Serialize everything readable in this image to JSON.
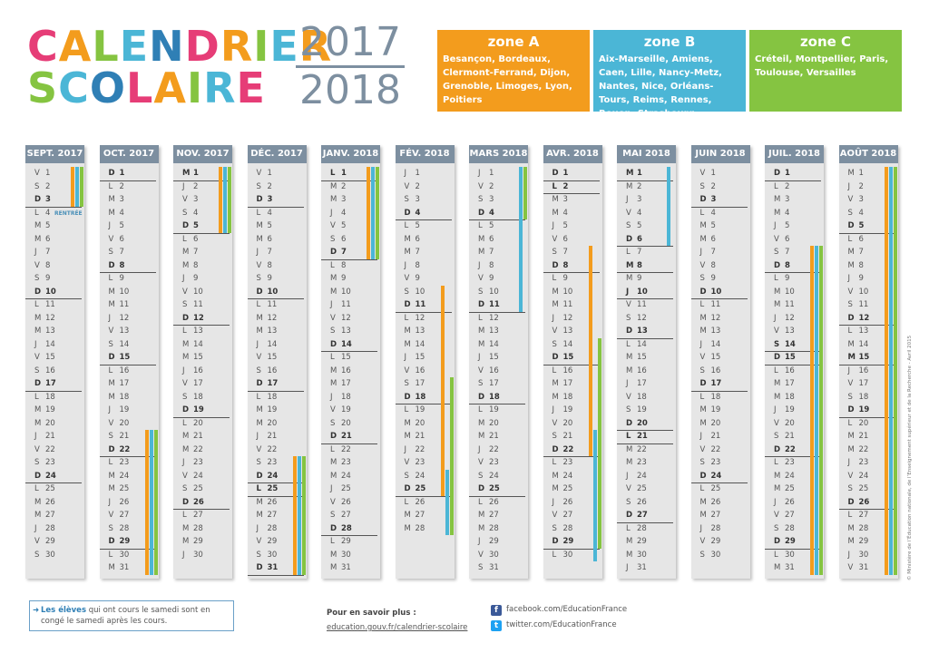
{
  "title": {
    "line1": [
      {
        "t": "C",
        "c": "#e63d77"
      },
      {
        "t": "A",
        "c": "#f39c1d"
      },
      {
        "t": "L",
        "c": "#85c441"
      },
      {
        "t": "E",
        "c": "#4bb6d6"
      },
      {
        "t": "N",
        "c": "#2f7fb5"
      },
      {
        "t": "D",
        "c": "#e63d77"
      },
      {
        "t": "R",
        "c": "#f39c1d"
      },
      {
        "t": "I",
        "c": "#85c441"
      },
      {
        "t": "E",
        "c": "#4bb6d6"
      },
      {
        "t": "R",
        "c": "#f39c1d"
      }
    ],
    "line2": [
      {
        "t": "S",
        "c": "#85c441"
      },
      {
        "t": "C",
        "c": "#4bb6d6"
      },
      {
        "t": "O",
        "c": "#2f7fb5"
      },
      {
        "t": "L",
        "c": "#e63d77"
      },
      {
        "t": "A",
        "c": "#f39c1d"
      },
      {
        "t": "I",
        "c": "#85c441"
      },
      {
        "t": "R",
        "c": "#4bb6d6"
      },
      {
        "t": "E",
        "c": "#e63d77"
      }
    ],
    "year1": "2017",
    "year2": "2018"
  },
  "zones": [
    {
      "name": "zone A",
      "cities": "Besançon, Bordeaux, Clermont-Ferrand, Dijon, Grenoble, Limoges, Lyon, Poitiers"
    },
    {
      "name": "zone B",
      "cities": "Aix-Marseille, Amiens, Caen, Lille, Nancy-Metz, Nantes, Nice, Orléans-Tours, Reims, Rennes, Rouen, Strasbourg"
    },
    {
      "name": "zone C",
      "cities": "Créteil, Montpellier, Paris, Toulouse, Versailles"
    }
  ],
  "rentree_label": "RENTRÉE",
  "months": [
    {
      "label": "SEPT. 2017",
      "days": 30,
      "first": 5,
      "bold": []
    },
    {
      "label": "OCT. 2017",
      "days": 31,
      "first": 0,
      "bold": []
    },
    {
      "label": "NOV. 2017",
      "days": 30,
      "first": 3,
      "bold": [
        1
      ]
    },
    {
      "label": "DÉC. 2017",
      "days": 31,
      "first": 5,
      "bold": [
        25
      ]
    },
    {
      "label": "JANV. 2018",
      "days": 31,
      "first": 1,
      "bold": [
        1
      ]
    },
    {
      "label": "FÉV. 2018",
      "days": 28,
      "first": 4,
      "bold": []
    },
    {
      "label": "MARS 2018",
      "days": 31,
      "first": 4,
      "bold": []
    },
    {
      "label": "AVR. 2018",
      "days": 30,
      "first": 0,
      "bold": [
        1,
        2
      ]
    },
    {
      "label": "MAI 2018",
      "days": 31,
      "first": 2,
      "bold": [
        1,
        8,
        10,
        21
      ]
    },
    {
      "label": "JUIN 2018",
      "days": 30,
      "first": 5,
      "bold": []
    },
    {
      "label": "JUIL. 2018",
      "days": 31,
      "first": 0,
      "bold": [
        14
      ]
    },
    {
      "label": "AOÛT 2018",
      "days": 31,
      "first": 3,
      "bold": [
        15
      ]
    }
  ],
  "weekday_letters": [
    "D",
    "L",
    "M",
    "M",
    "J",
    "V",
    "S"
  ],
  "holidays": [
    {
      "zone": "A",
      "m": 0,
      "s": 1,
      "e": 3
    },
    {
      "zone": "B",
      "m": 0,
      "s": 1,
      "e": 3
    },
    {
      "zone": "C",
      "m": 0,
      "s": 1,
      "e": 3
    },
    {
      "zone": "A",
      "m": 1,
      "s": 21,
      "e": 31
    },
    {
      "zone": "B",
      "m": 1,
      "s": 21,
      "e": 31
    },
    {
      "zone": "C",
      "m": 1,
      "s": 21,
      "e": 31
    },
    {
      "zone": "A",
      "m": 2,
      "s": 1,
      "e": 5
    },
    {
      "zone": "B",
      "m": 2,
      "s": 1,
      "e": 5
    },
    {
      "zone": "C",
      "m": 2,
      "s": 1,
      "e": 5
    },
    {
      "zone": "A",
      "m": 3,
      "s": 23,
      "e": 31
    },
    {
      "zone": "B",
      "m": 3,
      "s": 23,
      "e": 31
    },
    {
      "zone": "C",
      "m": 3,
      "s": 23,
      "e": 31
    },
    {
      "zone": "A",
      "m": 4,
      "s": 1,
      "e": 7
    },
    {
      "zone": "B",
      "m": 4,
      "s": 1,
      "e": 7
    },
    {
      "zone": "C",
      "m": 4,
      "s": 1,
      "e": 7
    },
    {
      "zone": "A",
      "m": 5,
      "s": 10,
      "e": 25
    },
    {
      "zone": "B",
      "m": 5,
      "s": 24,
      "e": 28
    },
    {
      "zone": "B",
      "m": 6,
      "s": 1,
      "e": 11
    },
    {
      "zone": "C",
      "m": 5,
      "s": 17,
      "e": 28
    },
    {
      "zone": "C",
      "m": 6,
      "s": 1,
      "e": 4
    },
    {
      "zone": "A",
      "m": 7,
      "s": 7,
      "e": 22
    },
    {
      "zone": "B",
      "m": 7,
      "s": 21,
      "e": 30
    },
    {
      "zone": "B",
      "m": 8,
      "s": 1,
      "e": 6
    },
    {
      "zone": "C",
      "m": 7,
      "s": 14,
      "e": 29
    },
    {
      "zone": "A",
      "m": 10,
      "s": 7,
      "e": 31
    },
    {
      "zone": "B",
      "m": 10,
      "s": 7,
      "e": 31
    },
    {
      "zone": "C",
      "m": 10,
      "s": 7,
      "e": 31
    },
    {
      "zone": "A",
      "m": 11,
      "s": 1,
      "e": 31
    },
    {
      "zone": "B",
      "m": 11,
      "s": 1,
      "e": 31
    },
    {
      "zone": "C",
      "m": 11,
      "s": 1,
      "e": 31
    }
  ],
  "note": {
    "bold": "Les élèves",
    "text": "qui ont cours le samedi sont en congé le samedi après les cours."
  },
  "more": {
    "label": "Pour en savoir plus :",
    "link": "education.gouv.fr/calendrier-scolaire"
  },
  "social": {
    "facebook": "facebook.com/EducationFrance",
    "twitter": "twitter.com/EducationFrance"
  },
  "copyright": "© Ministère de l’Éducation nationale, de l’Enseignement supérieur et de la Recherche - Avril 2015",
  "colors": {
    "zoneA": "#f39c1d",
    "zoneB": "#4bb6d6",
    "zoneC": "#85c441",
    "header": "#7d8fa0"
  }
}
